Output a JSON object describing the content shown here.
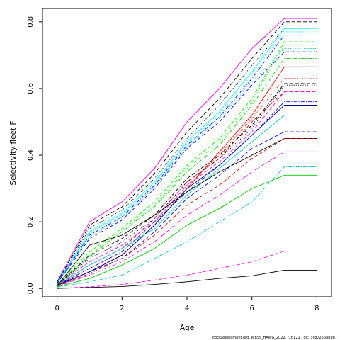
{
  "chart_data": {
    "type": "line",
    "xlabel": "Age",
    "ylabel": "Selectivity fleet F",
    "xlim": [
      -0.45,
      8.45
    ],
    "ylim": [
      -0.025,
      0.84
    ],
    "x_ticks": [
      "0",
      "2",
      "4",
      "6",
      "8"
    ],
    "y_ticks": [
      "0.0",
      "0.2",
      "0.4",
      "0.6",
      "0.8"
    ],
    "x": [
      0,
      1,
      2,
      3,
      4,
      5,
      6,
      7,
      8
    ],
    "grid": false,
    "legend": "none",
    "series": [
      {
        "color": "#ff00ff",
        "dash": "solid",
        "values": [
          0.02,
          0.2,
          0.26,
          0.36,
          0.5,
          0.6,
          0.72,
          0.81,
          0.81
        ]
      },
      {
        "color": "#000000",
        "dash": "dashed",
        "values": [
          0.018,
          0.19,
          0.245,
          0.345,
          0.47,
          0.57,
          0.69,
          0.8,
          0.8
        ]
      },
      {
        "color": "#000000",
        "dash": "dotted",
        "values": [
          0.017,
          0.18,
          0.235,
          0.33,
          0.45,
          0.55,
          0.67,
          0.78,
          0.78
        ]
      },
      {
        "color": "#00ffff",
        "dash": "solid",
        "values": [
          0.016,
          0.17,
          0.225,
          0.32,
          0.44,
          0.53,
          0.65,
          0.78,
          0.78
        ]
      },
      {
        "color": "#00ffff",
        "dash": "dotted",
        "values": [
          0.016,
          0.165,
          0.22,
          0.315,
          0.435,
          0.52,
          0.64,
          0.77,
          0.77
        ]
      },
      {
        "color": "#0000ff",
        "dash": "dashdot",
        "values": [
          0.015,
          0.16,
          0.215,
          0.31,
          0.43,
          0.515,
          0.63,
          0.76,
          0.76
        ]
      },
      {
        "color": "#00cdcd",
        "dash": "dotted",
        "values": [
          0.015,
          0.155,
          0.21,
          0.305,
          0.425,
          0.51,
          0.62,
          0.72,
          0.72
        ]
      },
      {
        "color": "#0000ff",
        "dash": "dashed",
        "values": [
          0.014,
          0.15,
          0.205,
          0.3,
          0.42,
          0.5,
          0.61,
          0.71,
          0.71
        ]
      },
      {
        "color": "#00ff00",
        "dash": "dashed",
        "values": [
          0.012,
          0.11,
          0.18,
          0.26,
          0.37,
          0.45,
          0.57,
          0.74,
          0.74
        ]
      },
      {
        "color": "#00ff00",
        "dash": "dotted",
        "values": [
          0.012,
          0.1,
          0.175,
          0.25,
          0.36,
          0.44,
          0.56,
          0.73,
          0.73
        ]
      },
      {
        "color": "#00cd00",
        "dash": "dashdot",
        "values": [
          0.011,
          0.095,
          0.17,
          0.245,
          0.35,
          0.43,
          0.55,
          0.69,
          0.69
        ]
      },
      {
        "color": "#ff0000",
        "dash": "solid",
        "values": [
          0.008,
          0.05,
          0.1,
          0.19,
          0.3,
          0.41,
          0.52,
          0.665,
          0.665
        ]
      },
      {
        "color": "#ff0000",
        "dash": "dotted",
        "values": [
          0.009,
          0.06,
          0.11,
          0.2,
          0.31,
          0.4,
          0.51,
          0.63,
          0.63
        ]
      },
      {
        "color": "#cd0000",
        "dash": "dashed",
        "values": [
          0.009,
          0.07,
          0.12,
          0.21,
          0.32,
          0.39,
          0.5,
          0.59,
          0.59
        ]
      },
      {
        "color": "#000000",
        "dash": "dashed",
        "values": [
          0.01,
          0.1,
          0.15,
          0.22,
          0.33,
          0.4,
          0.49,
          0.615,
          0.615
        ]
      },
      {
        "color": "#000000",
        "dash": "dotted",
        "values": [
          0.01,
          0.09,
          0.14,
          0.21,
          0.32,
          0.39,
          0.48,
          0.61,
          0.61
        ]
      },
      {
        "color": "#ff00ff",
        "dash": "dashed",
        "values": [
          0.01,
          0.08,
          0.13,
          0.2,
          0.31,
          0.38,
          0.47,
          0.59,
          0.59
        ]
      },
      {
        "color": "#000080",
        "dash": "solid",
        "values": [
          0.01,
          0.05,
          0.1,
          0.19,
          0.3,
          0.37,
          0.46,
          0.55,
          0.55
        ]
      },
      {
        "color": "#0000ff",
        "dash": "dashdot",
        "values": [
          0.01,
          0.06,
          0.11,
          0.2,
          0.29,
          0.37,
          0.46,
          0.56,
          0.56
        ]
      },
      {
        "color": "#00cdcd",
        "dash": "solid",
        "values": [
          0.01,
          0.07,
          0.12,
          0.18,
          0.28,
          0.36,
          0.44,
          0.52,
          0.52
        ]
      },
      {
        "color": "#0000ff",
        "dash": "dashed",
        "values": [
          0.008,
          0.05,
          0.09,
          0.17,
          0.27,
          0.34,
          0.42,
          0.47,
          0.47
        ]
      },
      {
        "color": "#000000",
        "dash": "solid",
        "values": [
          0.008,
          0.13,
          0.16,
          0.22,
          0.29,
          0.35,
          0.4,
          0.45,
          0.45
        ]
      },
      {
        "color": "#cd0000",
        "dash": "dashed",
        "values": [
          0.007,
          0.045,
          0.09,
          0.16,
          0.25,
          0.31,
          0.39,
          0.45,
          0.45
        ]
      },
      {
        "color": "#ff00ff",
        "dash": "dashdot",
        "values": [
          0.006,
          0.04,
          0.08,
          0.14,
          0.22,
          0.28,
          0.35,
          0.41,
          0.41
        ]
      },
      {
        "color": "#00cccc",
        "dash": "dashdot",
        "values": [
          0.004,
          0.02,
          0.04,
          0.09,
          0.14,
          0.2,
          0.26,
          0.365,
          0.365
        ]
      },
      {
        "color": "#00cd00",
        "dash": "solid",
        "values": [
          0.005,
          0.03,
          0.07,
          0.12,
          0.19,
          0.24,
          0.3,
          0.34,
          0.34
        ]
      },
      {
        "color": "#ff00ff",
        "dash": "dashed",
        "values": [
          0.0,
          0.005,
          0.012,
          0.025,
          0.04,
          0.06,
          0.08,
          0.112,
          0.112
        ]
      },
      {
        "color": "#000000",
        "dash": "solid",
        "values": [
          0.0,
          0.003,
          0.006,
          0.012,
          0.02,
          0.03,
          0.038,
          0.055,
          0.055
        ]
      }
    ]
  },
  "footer_text": "stockassessment.org, WBSS_HAWG_2022, r16121 , git: 3c872568b9d7"
}
